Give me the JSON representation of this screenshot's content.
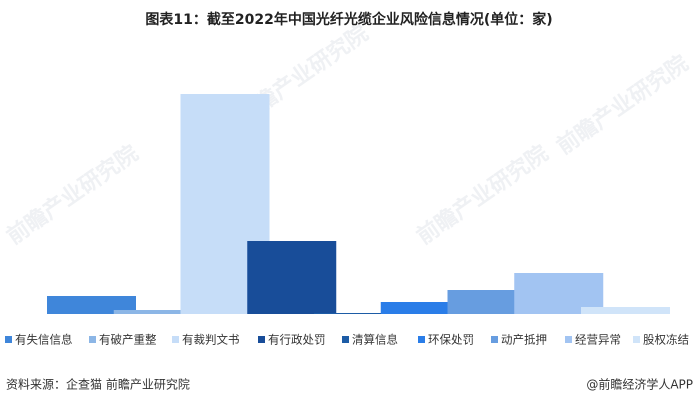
{
  "chart_data": {
    "type": "bar",
    "title": "图表11：截至2022年中国光纤光缆企业风险信息情况(单位：家)",
    "categories": [
      null
    ],
    "series": [
      {
        "name": "有失信信息",
        "color": "#3f86da",
        "values": [
          18
        ]
      },
      {
        "name": "有破产重整",
        "color": "#8cb6e6",
        "values": [
          4
        ]
      },
      {
        "name": "有裁判文书",
        "color": "#c6ddf8",
        "values": [
          220
        ]
      },
      {
        "name": "有行政处罚",
        "color": "#184d99",
        "values": [
          73
        ]
      },
      {
        "name": "清算信息",
        "color": "#1d5ca6",
        "values": [
          1
        ]
      },
      {
        "name": "环保处罚",
        "color": "#2a7de8",
        "values": [
          12
        ]
      },
      {
        "name": "动产抵押",
        "color": "#679de0",
        "values": [
          24
        ]
      },
      {
        "name": "经营异常",
        "color": "#a2c4f2",
        "values": [
          41
        ]
      },
      {
        "name": "股权冻结",
        "color": "#d0e4f9",
        "values": [
          7
        ]
      }
    ],
    "ylim": [
      0,
      220
    ],
    "source": "资料来源：企查猫 前瞻产业研究院",
    "credit": "@前瞻经济学人APP",
    "watermark": "前瞻产业研究院"
  }
}
